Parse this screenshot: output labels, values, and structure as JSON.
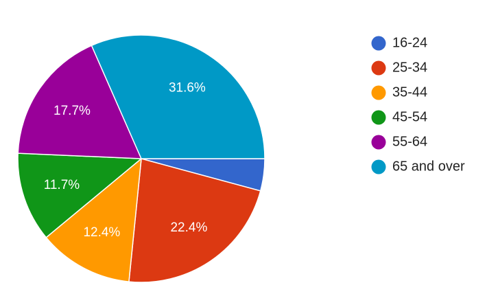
{
  "chart_data": {
    "type": "pie",
    "categories": [
      "16-24",
      "25-34",
      "35-44",
      "45-54",
      "55-64",
      "65 and over"
    ],
    "values": [
      4.2,
      22.4,
      12.4,
      11.7,
      17.7,
      31.6
    ],
    "value_labels": [
      null,
      "22.4%",
      "12.4%",
      "11.7%",
      "17.7%",
      "31.6%"
    ],
    "colors": [
      "#3366cc",
      "#dc3912",
      "#ff9900",
      "#109618",
      "#990099",
      "#0099c6"
    ],
    "legend": "right"
  }
}
